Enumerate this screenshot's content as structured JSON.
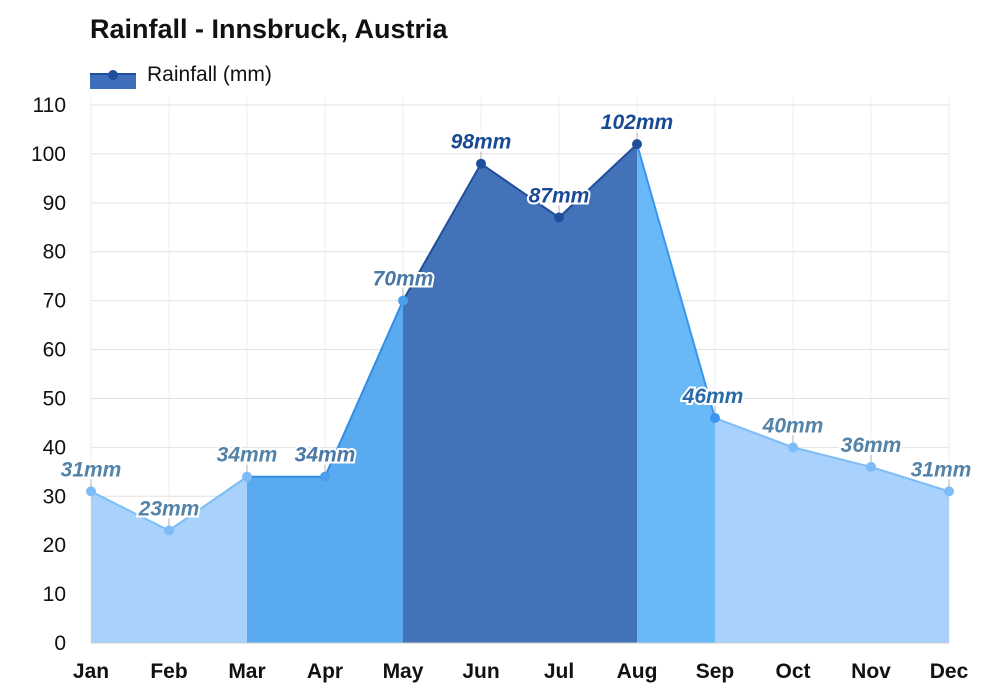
{
  "chart_data": {
    "type": "area",
    "title": "Rainfall - Innsbruck, Austria",
    "legend": [
      {
        "label": "Rainfall (mm)",
        "color": "#1f4e9c"
      }
    ],
    "legend_placement": "top-left",
    "categories": [
      "Jan",
      "Feb",
      "Mar",
      "Apr",
      "May",
      "Jun",
      "Jul",
      "Aug",
      "Sep",
      "Oct",
      "Nov",
      "Dec"
    ],
    "series": [
      {
        "name": "Rainfall (mm)",
        "values": [
          31,
          23,
          34,
          34,
          70,
          98,
          87,
          102,
          46,
          40,
          36,
          31
        ]
      }
    ],
    "data_labels": [
      "31mm",
      "23mm",
      "34mm",
      "34mm",
      "70mm",
      "98mm",
      "87mm",
      "102mm",
      "46mm",
      "40mm",
      "36mm",
      "31mm"
    ],
    "ylim": [
      0,
      110
    ],
    "yticks": [
      0,
      10,
      20,
      30,
      40,
      50,
      60,
      70,
      80,
      90,
      100,
      110
    ],
    "grid": true,
    "xlabel": "",
    "ylabel": "",
    "colors": {
      "dry": {
        "fill": "#a8d1fb",
        "line": "#7dbcf7",
        "dot": "#7dbcf7",
        "label": "#5383a8"
      },
      "moderate": {
        "fill": "#5aaaf0",
        "line": "#2f8ee6",
        "dot": "#4aa0ec",
        "label": "#4a78a6"
      },
      "wet": {
        "fill": "#4472b9",
        "line": "#1f4e9c",
        "dot": "#1f4e9c",
        "label": "#1a4a96"
      },
      "shoulder": {
        "fill": "#69b8f8",
        "line": "#3a96f0",
        "dot": "#3a96f0",
        "label": "#2a6aa8"
      }
    },
    "segment_classes": [
      "dry",
      "dry",
      "moderate",
      "moderate",
      "wet",
      "wet",
      "wet",
      "shoulder",
      "dry",
      "dry",
      "dry"
    ],
    "point_classes": [
      "dry",
      "dry",
      "dry",
      "moderate",
      "moderate",
      "wet",
      "wet",
      "wet",
      "shoulder",
      "dry",
      "dry",
      "dry"
    ]
  }
}
